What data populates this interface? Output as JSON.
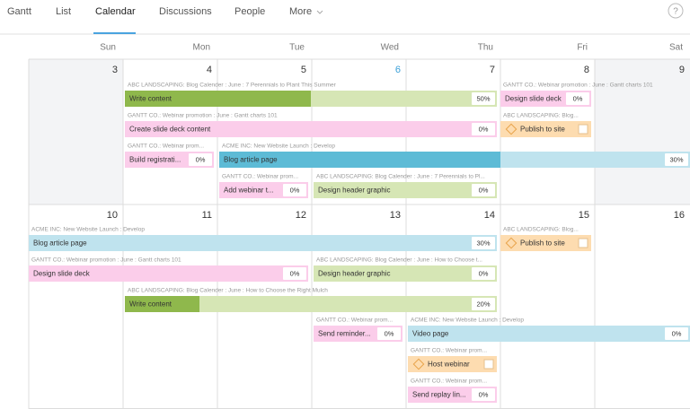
{
  "nav": {
    "tabs": [
      "Gantt",
      "List",
      "Calendar",
      "Discussions",
      "People",
      "More"
    ],
    "help": "?"
  },
  "days": [
    "Sun",
    "Mon",
    "Tue",
    "Wed",
    "Thu",
    "Fri",
    "Sat"
  ],
  "weeks": [
    {
      "dates": [
        "3",
        "4",
        "5",
        "6",
        "7",
        "8",
        "9"
      ],
      "tasks": [
        {
          "project": "ABC LANDSCAPING: Blog Calender : June : 7 Perennials to Plant This Summer",
          "name": "Write content",
          "progress": "50%"
        },
        {
          "project": "GANTT CO.: Webinar promotion : June : Gantt charts 101",
          "name": "Design slide deck",
          "progress": "0%"
        },
        {
          "project": "GANTT CO.: Webinar promotion : June : Gantt charts 101",
          "name": "Create slide deck content",
          "progress": "0%"
        },
        {
          "project": "ABC LANDSCAPING: Blog...",
          "name": "Publish to site"
        },
        {
          "project": "GANTT CO.: Webinar prom...",
          "name": "Build registrati...",
          "progress": "0%"
        },
        {
          "project": "ACME INC: New Website Launch : Develop",
          "name": "Blog article page",
          "progress": "30%"
        },
        {
          "project": "GANTT CO.: Webinar prom...",
          "name": "Add webinar t...",
          "progress": "0%"
        },
        {
          "project": "ABC LANDSCAPING: Blog Calender : June : 7 Perennials to Pl...",
          "name": "Design header graphic",
          "progress": "0%"
        }
      ]
    },
    {
      "dates": [
        "10",
        "11",
        "12",
        "13",
        "14",
        "15",
        "16"
      ],
      "tasks": [
        {
          "project": "ACME INC: New Website Launch : Develop",
          "name": "Blog article page",
          "progress": "30%"
        },
        {
          "project": "ABC LANDSCAPING: Blog...",
          "name": "Publish to site"
        },
        {
          "project": "GANTT CO.: Webinar promotion : June : Gantt charts 101",
          "name": "Design slide deck",
          "progress": "0%"
        },
        {
          "project": "ABC LANDSCAPING: Blog Calender : June : How to Choose t...",
          "name": "Design header graphic",
          "progress": "0%"
        },
        {
          "project": "ABC LANDSCAPING: Blog Calender : June : How to Choose the Right Mulch",
          "name": "Write content",
          "progress": "20%"
        },
        {
          "project": "GANTT CO.: Webinar prom...",
          "name": "Send reminder...",
          "progress": "0%"
        },
        {
          "project": "ACME INC: New Website Launch : Develop",
          "name": "Video page",
          "progress": "0%"
        },
        {
          "project": "GANTT CO.: Webinar prom...",
          "name": "Host webinar"
        },
        {
          "project": "GANTT CO.: Webinar prom...",
          "name": "Send replay lin...",
          "progress": "0%"
        }
      ]
    }
  ]
}
